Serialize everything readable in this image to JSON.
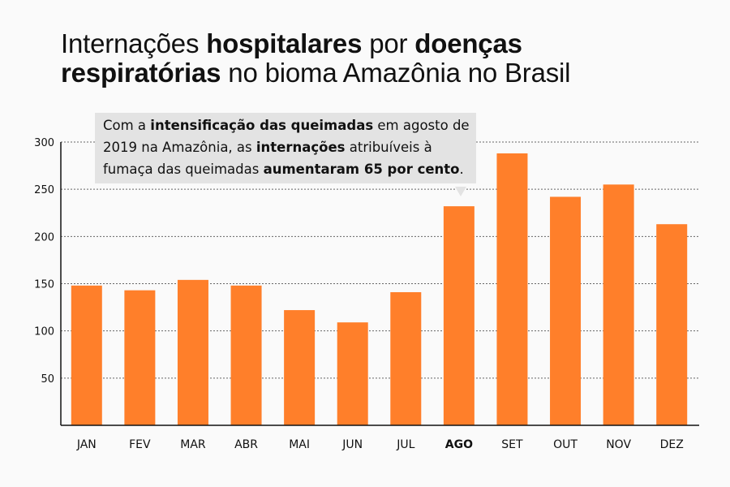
{
  "title": {
    "parts": [
      {
        "text": "Internações ",
        "bold": false
      },
      {
        "text": "hospitalares",
        "bold": true
      },
      {
        "text": " por ",
        "bold": false
      },
      {
        "text": "doenças",
        "bold": true
      },
      {
        "text": "\n",
        "bold": false
      },
      {
        "text": "respiratórias",
        "bold": true
      },
      {
        "text": " no bioma Amazônia no Brasil",
        "bold": false
      }
    ]
  },
  "annotation": {
    "parts": [
      {
        "text": "Com a ",
        "bold": false
      },
      {
        "text": "intensificação das queimadas",
        "bold": true
      },
      {
        "text": " em agosto de 2019 na Amazônia, as ",
        "bold": false
      },
      {
        "text": "internações",
        "bold": true
      },
      {
        "text": " atribuíveis à fumaça das queimadas ",
        "bold": false
      },
      {
        "text": "aumentaram 65 por cento",
        "bold": true
      },
      {
        "text": ".",
        "bold": false
      }
    ],
    "points_to": "AGO"
  },
  "colors": {
    "bar": "#ff7f2a",
    "grid": "#666666",
    "note_bg": "#e3e3e3"
  },
  "chart_data": {
    "type": "bar",
    "categories": [
      "JAN",
      "FEV",
      "MAR",
      "ABR",
      "MAI",
      "JUN",
      "JUL",
      "AGO",
      "SET",
      "OUT",
      "NOV",
      "DEZ"
    ],
    "values": [
      148,
      143,
      154,
      148,
      122,
      109,
      141,
      232,
      288,
      242,
      255,
      213
    ],
    "highlight_category": "AGO",
    "ylim": [
      0,
      300
    ],
    "yticks": [
      50,
      100,
      150,
      200,
      250,
      300
    ],
    "grid": "dotted-horizontal",
    "legend": "none"
  }
}
